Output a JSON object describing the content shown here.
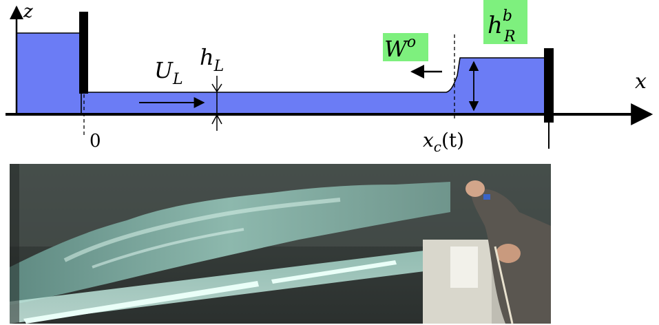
{
  "diagram": {
    "axis_z": "z",
    "axis_x": "x",
    "origin_label": "0",
    "left_velocity": "U",
    "left_velocity_sub": "L",
    "left_depth": "h",
    "left_depth_sub": "L",
    "bore_speed": "W",
    "bore_speed_sup": "o",
    "right_depth": "h",
    "right_depth_sup": "b",
    "right_depth_sub": "R",
    "front_position": "x",
    "front_position_sub": "c",
    "front_position_arg": "(t)",
    "colors": {
      "water": "#6b7cf5",
      "highlight": "#7ef07e",
      "line": "#000000"
    }
  },
  "photo": {
    "subject": "flume with turbulent bore"
  }
}
